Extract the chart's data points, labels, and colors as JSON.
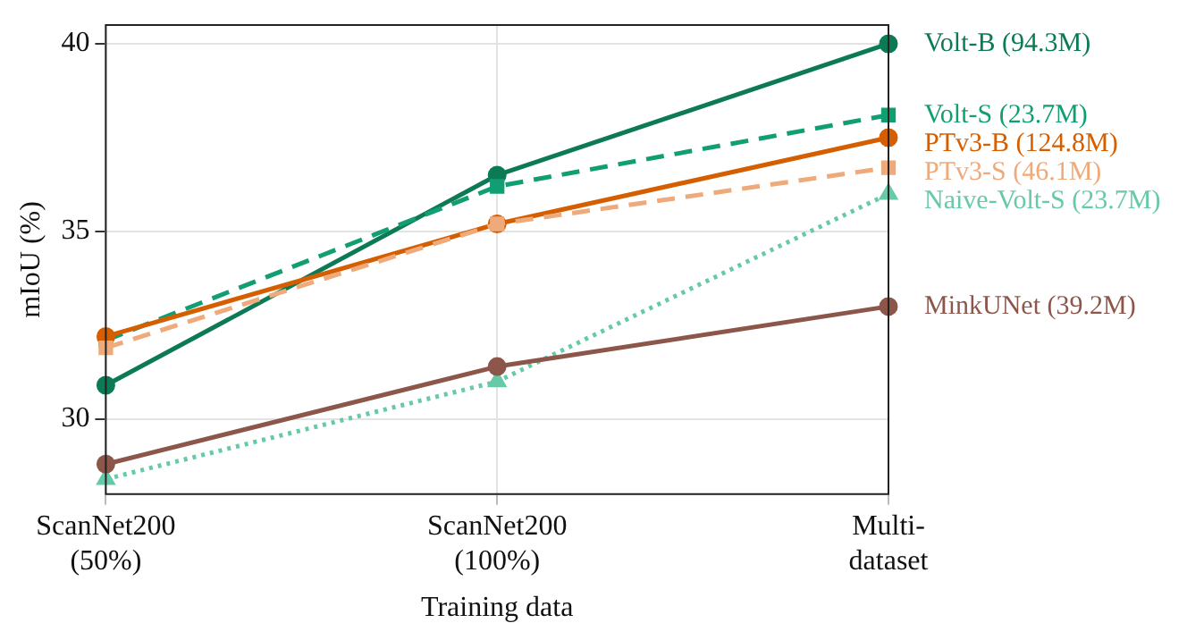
{
  "chart_data": {
    "type": "line",
    "xlabel": "Training data",
    "ylabel": "mIoU (%)",
    "categories": [
      "ScanNet200\n(50%)",
      "ScanNet200\n(100%)",
      "Multi-\ndataset"
    ],
    "series": [
      {
        "name": "Volt-B (94.3M)",
        "color": "#0b7a55",
        "values": [
          30.9,
          36.5,
          40.0
        ],
        "marker": "circle",
        "line_style": "solid"
      },
      {
        "name": "Volt-S (23.7M)",
        "color": "#119e73",
        "values": [
          32.1,
          36.2,
          38.1
        ],
        "marker": "square",
        "line_style": "dashed"
      },
      {
        "name": "PTv3-B (124.8M)",
        "color": "#d55e00",
        "values": [
          32.2,
          35.2,
          37.5
        ],
        "marker": "circle",
        "line_style": "solid"
      },
      {
        "name": "PTv3-S (46.1M)",
        "color": "#eeaa7a",
        "values": [
          31.9,
          35.2,
          36.7
        ],
        "marker": "square",
        "line_style": "dashed"
      },
      {
        "name": "Naive-Volt-S (23.7M)",
        "color": "#66c9a8",
        "values": [
          28.4,
          31.0,
          36.0
        ],
        "marker": "triangle",
        "line_style": "dotted"
      },
      {
        "name": "MinkUNet (39.2M)",
        "color": "#8c564b",
        "values": [
          28.8,
          31.4,
          33.0
        ],
        "marker": "circle",
        "line_style": "solid"
      }
    ],
    "ylim": [
      28,
      40.5
    ],
    "yticks": [
      30,
      35,
      40
    ],
    "grid": true,
    "legend": "right"
  }
}
